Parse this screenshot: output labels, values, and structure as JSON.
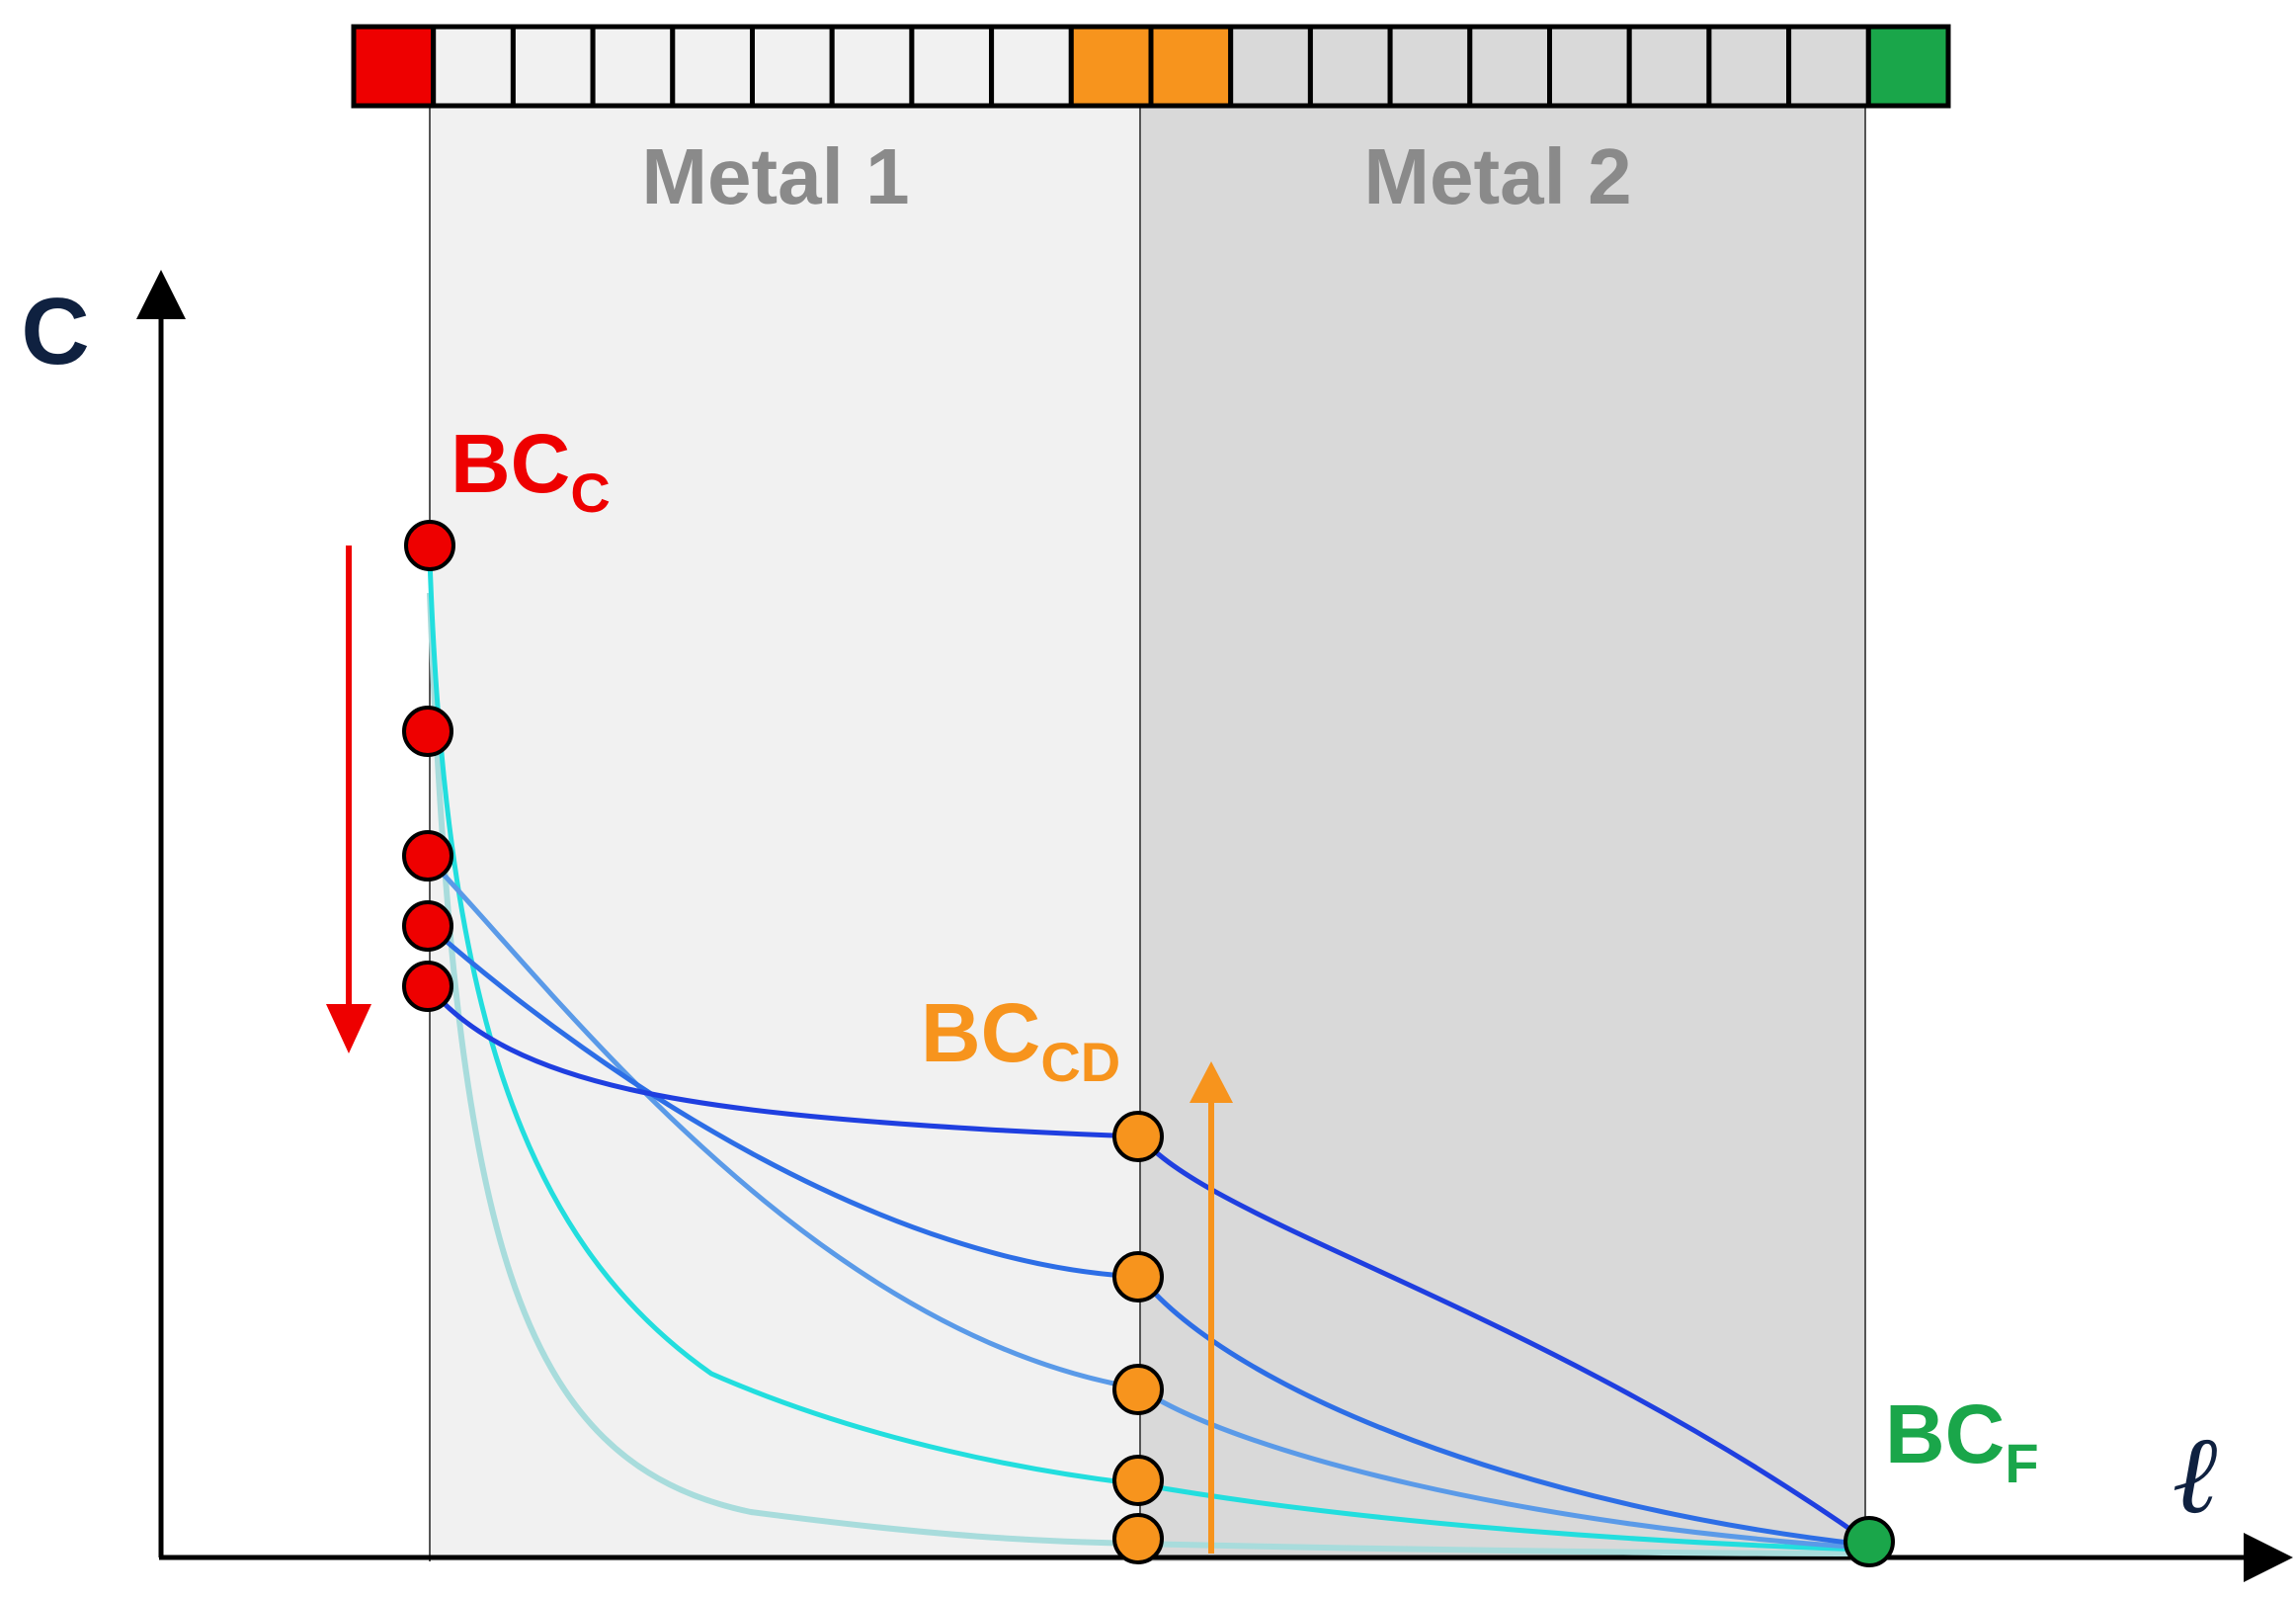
{
  "regions": {
    "metal1_label": "Metal 1",
    "metal2_label": "Metal 2"
  },
  "axes": {
    "y_label": "C",
    "x_label": "ℓ"
  },
  "boundary_conditions": {
    "cathode": {
      "main": "BC",
      "sub": "C",
      "color": "#ee0000"
    },
    "interface": {
      "main": "BC",
      "sub": "CD",
      "color": "#f7941d"
    },
    "far_field": {
      "main": "BC",
      "sub": "F",
      "color": "#1aa64a"
    }
  },
  "colors": {
    "cathode_red": "#ee0000",
    "interface_orange": "#f7941d",
    "far_green": "#1aa64a",
    "metal1_fill": "#f1f1f1",
    "metal2_fill": "#d9d9d9",
    "curve_colors": [
      "#1f3fe0",
      "#2d6ee6",
      "#5a9ae8",
      "#22dede",
      "#a8dcdc"
    ]
  },
  "cell_strip": {
    "cell_colors": [
      "#ee0000",
      "#f1f1f1",
      "#f1f1f1",
      "#f1f1f1",
      "#f1f1f1",
      "#f1f1f1",
      "#f1f1f1",
      "#f1f1f1",
      "#f1f1f1",
      "#f7941d",
      "#f7941d",
      "#d9d9d9",
      "#d9d9d9",
      "#d9d9d9",
      "#d9d9d9",
      "#d9d9d9",
      "#d9d9d9",
      "#d9d9d9",
      "#d9d9d9",
      "#1aa64a"
    ]
  }
}
